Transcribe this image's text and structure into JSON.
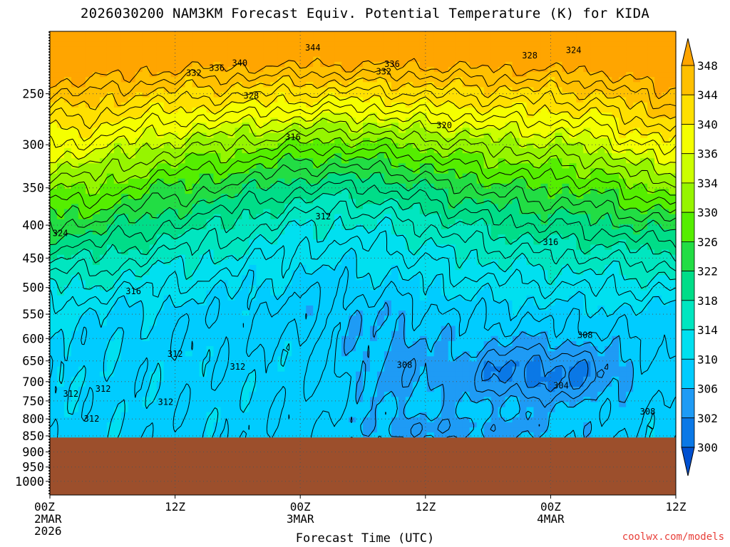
{
  "title": "2026030200 NAM3KM Forecast Equiv. Potential Temperature (K) for KIDA",
  "xlabel": "Forecast Time (UTC)",
  "credit": "coolwx.com/models",
  "colors": {
    "ground": "#9c4f2c",
    "contour": "#000000",
    "grid": "#555555"
  },
  "chart_data": {
    "type": "heatmap",
    "title": "2026030200 NAM3KM Forecast Equiv. Potential Temperature (K) for KIDA",
    "xlabel": "Forecast Time (UTC)",
    "ylabel": "",
    "x_range_hours": [
      0,
      60
    ],
    "x_ticks": [
      {
        "hour": 0,
        "lines": [
          "00Z",
          "2MAR",
          "2026"
        ]
      },
      {
        "hour": 12,
        "lines": [
          "12Z"
        ]
      },
      {
        "hour": 24,
        "lines": [
          "00Z",
          "3MAR"
        ]
      },
      {
        "hour": 36,
        "lines": [
          "12Z"
        ]
      },
      {
        "hour": 48,
        "lines": [
          "00Z",
          "4MAR"
        ]
      },
      {
        "hour": 60,
        "lines": [
          "12Z"
        ]
      }
    ],
    "y_axis": "pressure (hPa), log scale, inverted",
    "y_range": [
      200,
      1050
    ],
    "y_ticks": [
      250,
      300,
      350,
      400,
      450,
      500,
      550,
      600,
      650,
      700,
      750,
      800,
      850,
      900,
      950,
      1000
    ],
    "colorbar": {
      "labels": [
        348,
        344,
        340,
        336,
        334,
        330,
        326,
        322,
        318,
        314,
        310,
        306,
        302,
        300
      ],
      "colors": [
        "#ffa500",
        "#ffc000",
        "#ffe000",
        "#f5ff00",
        "#ccff00",
        "#96f500",
        "#55ee00",
        "#22dd44",
        "#00dd88",
        "#00e6c0",
        "#00e0f0",
        "#00ccff",
        "#1e9bf5",
        "#0a78e6",
        "#0050d0"
      ]
    },
    "ground_surface_hpa": 855,
    "contour_labels": [
      {
        "hour": 25.2,
        "p": 212,
        "text": "344"
      },
      {
        "hour": 13.8,
        "p": 232,
        "text": "332"
      },
      {
        "hour": 16.0,
        "p": 228,
        "text": "336"
      },
      {
        "hour": 18.2,
        "p": 224,
        "text": "340"
      },
      {
        "hour": 32.0,
        "p": 231,
        "text": "332"
      },
      {
        "hour": 32.8,
        "p": 225,
        "text": "336"
      },
      {
        "hour": 46.0,
        "p": 218,
        "text": "328"
      },
      {
        "hour": 50.2,
        "p": 214,
        "text": "324"
      },
      {
        "hour": 19.3,
        "p": 252,
        "text": "328"
      },
      {
        "hour": 37.8,
        "p": 280,
        "text": "320"
      },
      {
        "hour": 23.3,
        "p": 292,
        "text": "316"
      },
      {
        "hour": 1.0,
        "p": 412,
        "text": "324"
      },
      {
        "hour": 26.2,
        "p": 388,
        "text": "312"
      },
      {
        "hour": 48.0,
        "p": 425,
        "text": "316"
      },
      {
        "hour": 8.0,
        "p": 507,
        "text": "316"
      },
      {
        "hour": 51.3,
        "p": 593,
        "text": "308"
      },
      {
        "hour": 12.0,
        "p": 634,
        "text": "312"
      },
      {
        "hour": 18.0,
        "p": 664,
        "text": "312"
      },
      {
        "hour": 34.0,
        "p": 660,
        "text": "308"
      },
      {
        "hour": 49.0,
        "p": 710,
        "text": "304"
      },
      {
        "hour": 2.0,
        "p": 731,
        "text": "312"
      },
      {
        "hour": 5.1,
        "p": 718,
        "text": "312"
      },
      {
        "hour": 11.1,
        "p": 753,
        "text": "312"
      },
      {
        "hour": 4.0,
        "p": 799,
        "text": "312"
      },
      {
        "hour": 57.3,
        "p": 779,
        "text": "308"
      }
    ]
  }
}
